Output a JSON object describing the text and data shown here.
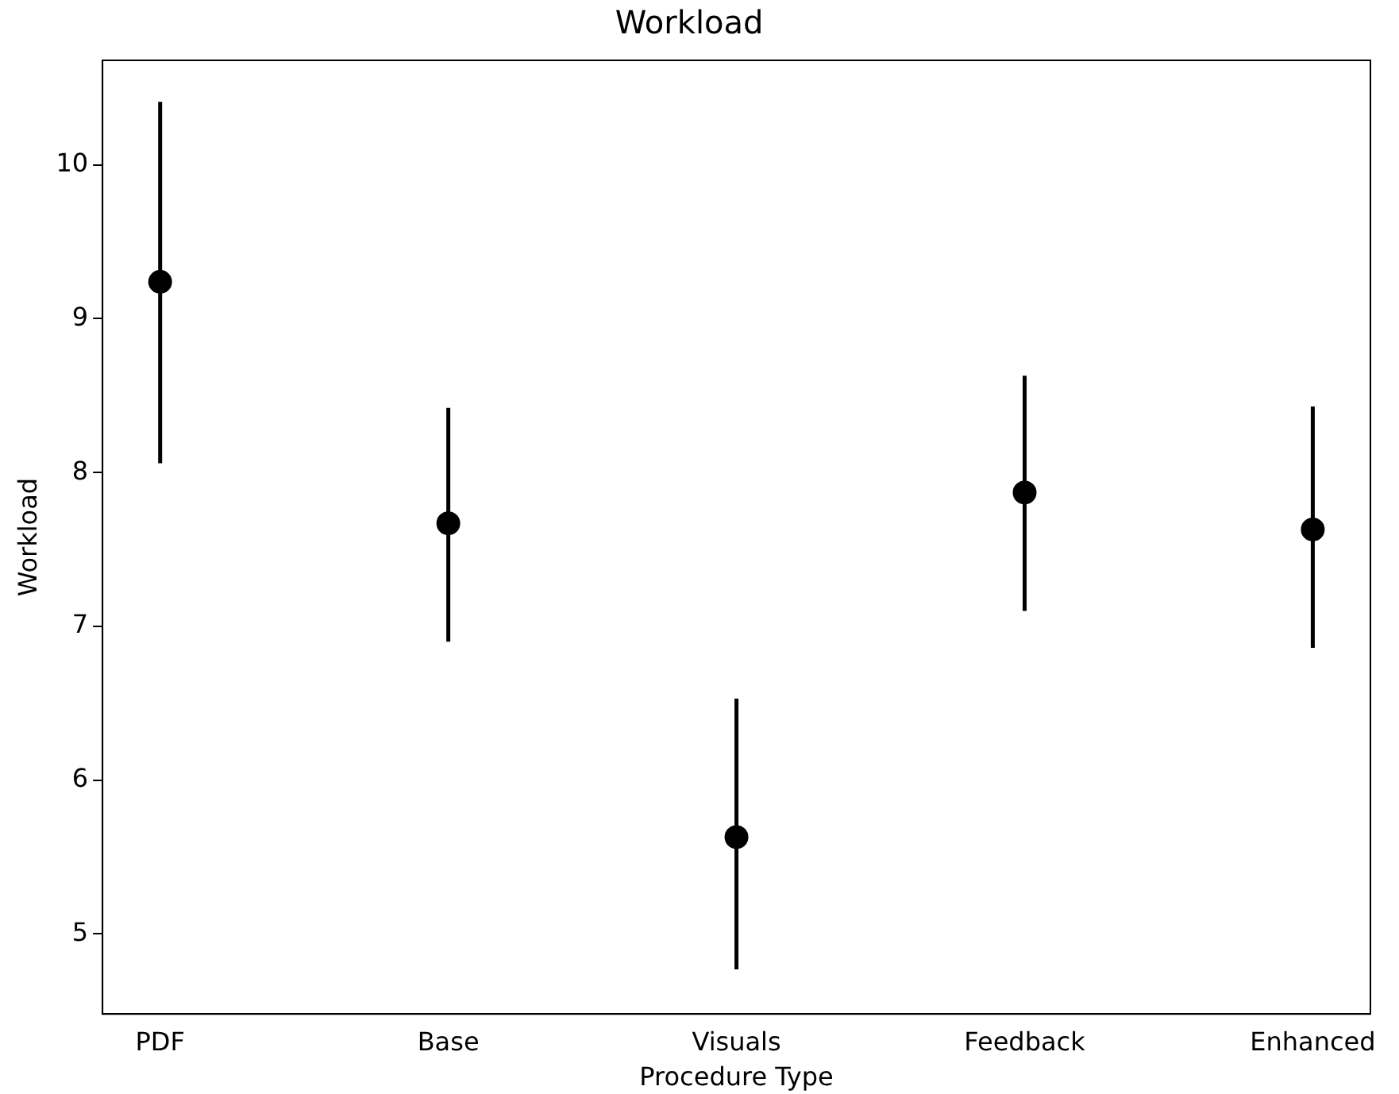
{
  "chart_data": {
    "type": "scatter",
    "title": "Workload",
    "xlabel": "Procedure Type",
    "ylabel": "Workload",
    "categories": [
      "PDF",
      "Base",
      "Visuals",
      "Feedback",
      "Enhanced"
    ],
    "values": [
      9.24,
      7.67,
      5.63,
      7.87,
      7.63
    ],
    "errors": [
      [
        8.06,
        10.41
      ],
      [
        6.9,
        8.42
      ],
      [
        4.77,
        6.53
      ],
      [
        7.1,
        8.63
      ],
      [
        6.86,
        8.43
      ]
    ],
    "color": "#000000",
    "marker": "circle",
    "grid": false,
    "ylim": [
      4.48,
      10.68
    ],
    "yticks": [
      5,
      6,
      7,
      8,
      9,
      10
    ]
  }
}
